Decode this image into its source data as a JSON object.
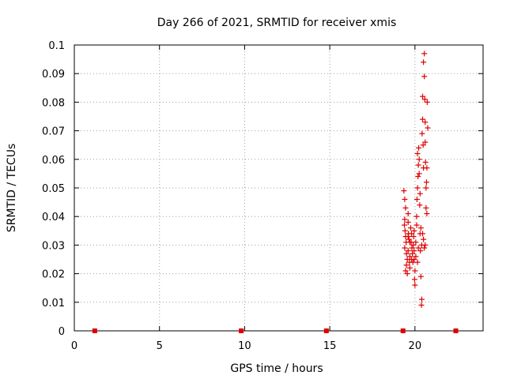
{
  "chart_data": {
    "type": "scatter",
    "title": "Day 266 of 2021, SRMTID for receiver xmis",
    "xlabel": "GPS time / hours",
    "ylabel": "SRMTID / TECUs",
    "xlim": [
      0,
      24
    ],
    "ylim": [
      0,
      0.1
    ],
    "xticks": [
      0,
      5,
      10,
      15,
      20
    ],
    "yticks": [
      0,
      0.01,
      0.02,
      0.03,
      0.04,
      0.05,
      0.06,
      0.07,
      0.08,
      0.09,
      0.1
    ],
    "grid": true,
    "marker_color": "#e00000",
    "series": [
      {
        "marker": "plus",
        "points": [
          [
            19.35,
            0.049
          ],
          [
            19.4,
            0.046
          ],
          [
            19.45,
            0.043
          ],
          [
            19.4,
            0.039
          ],
          [
            19.38,
            0.037
          ],
          [
            19.42,
            0.035
          ],
          [
            19.45,
            0.033
          ],
          [
            19.48,
            0.031
          ],
          [
            19.4,
            0.029
          ],
          [
            19.5,
            0.027
          ],
          [
            19.55,
            0.025
          ],
          [
            19.5,
            0.023
          ],
          [
            19.45,
            0.021
          ],
          [
            19.55,
            0.02
          ],
          [
            19.6,
            0.041
          ],
          [
            19.6,
            0.038
          ],
          [
            19.62,
            0.034
          ],
          [
            19.65,
            0.032
          ],
          [
            19.6,
            0.028
          ],
          [
            19.7,
            0.026
          ],
          [
            19.68,
            0.024
          ],
          [
            19.7,
            0.022
          ],
          [
            19.75,
            0.036
          ],
          [
            19.8,
            0.034
          ],
          [
            19.78,
            0.031
          ],
          [
            19.82,
            0.029
          ],
          [
            19.85,
            0.027
          ],
          [
            19.8,
            0.025
          ],
          [
            19.88,
            0.024
          ],
          [
            19.9,
            0.03
          ],
          [
            19.92,
            0.033
          ],
          [
            19.95,
            0.035
          ],
          [
            19.95,
            0.028
          ],
          [
            19.98,
            0.018
          ],
          [
            20.0,
            0.016
          ],
          [
            20.0,
            0.021
          ],
          [
            20.05,
            0.026
          ],
          [
            20.05,
            0.031
          ],
          [
            20.1,
            0.037
          ],
          [
            20.1,
            0.04
          ],
          [
            20.12,
            0.046
          ],
          [
            20.15,
            0.05
          ],
          [
            20.18,
            0.054
          ],
          [
            20.2,
            0.058
          ],
          [
            20.15,
            0.062
          ],
          [
            20.22,
            0.064
          ],
          [
            20.25,
            0.06
          ],
          [
            20.25,
            0.055
          ],
          [
            20.28,
            0.044
          ],
          [
            20.3,
            0.048
          ],
          [
            20.3,
            0.034
          ],
          [
            20.32,
            0.028
          ],
          [
            20.35,
            0.019
          ],
          [
            20.38,
            0.009
          ],
          [
            20.4,
            0.011
          ],
          [
            20.4,
            0.03
          ],
          [
            20.42,
            0.069
          ],
          [
            20.45,
            0.074
          ],
          [
            20.45,
            0.082
          ],
          [
            20.48,
            0.065
          ],
          [
            20.5,
            0.057
          ],
          [
            20.5,
            0.094
          ],
          [
            20.55,
            0.097
          ],
          [
            20.55,
            0.089
          ],
          [
            20.58,
            0.081
          ],
          [
            20.6,
            0.073
          ],
          [
            20.6,
            0.066
          ],
          [
            20.62,
            0.059
          ],
          [
            20.65,
            0.05
          ],
          [
            20.65,
            0.043
          ],
          [
            20.68,
            0.052
          ],
          [
            20.7,
            0.041
          ],
          [
            20.7,
            0.057
          ],
          [
            20.72,
            0.08
          ],
          [
            20.75,
            0.071
          ],
          [
            20.55,
            0.029
          ],
          [
            20.6,
            0.03
          ],
          [
            20.5,
            0.032
          ],
          [
            20.45,
            0.034
          ],
          [
            20.35,
            0.036
          ],
          [
            20.2,
            0.029
          ],
          [
            20.15,
            0.024
          ],
          [
            19.95,
            0.025
          ],
          [
            19.7,
            0.031
          ],
          [
            19.6,
            0.033
          ]
        ]
      },
      {
        "marker": "square",
        "points": [
          [
            1.2,
            0
          ],
          [
            9.8,
            0
          ],
          [
            14.8,
            0
          ],
          [
            19.3,
            0
          ],
          [
            22.4,
            0
          ]
        ]
      }
    ]
  }
}
